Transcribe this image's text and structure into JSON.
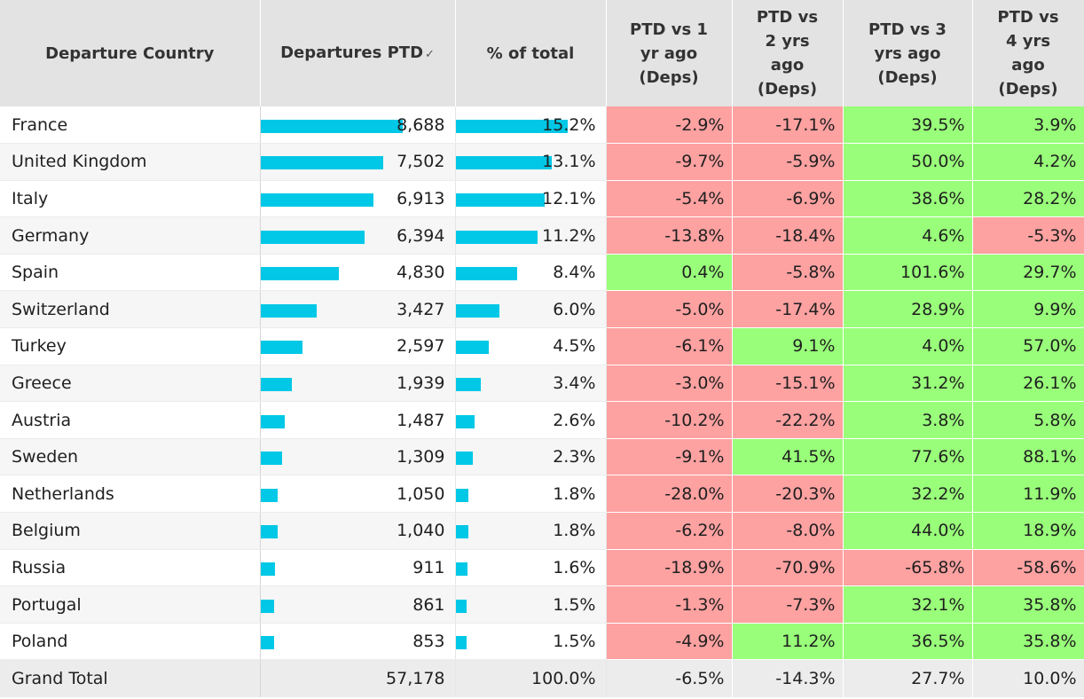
{
  "headers": {
    "country": "Departure Country",
    "departures": "Departures PTD",
    "pct_total": "% of total",
    "vs1": "PTD vs 1 yr ago (Deps)",
    "vs2": "PTD vs 2 yrs ago (Deps)",
    "vs3": "PTD vs 3 yrs ago (Deps)",
    "vs4": "PTD vs 4 yrs ago (Deps)"
  },
  "sort_icon": "sort-descending-icon",
  "sort_glyph": "✓",
  "colors": {
    "bar": "#00c8e6",
    "negative": "#fda1a1",
    "positive": "#99ff7a"
  },
  "max_departures": 8688,
  "max_pct": 15.2,
  "rows": [
    {
      "country": "France",
      "departures": "8,688",
      "dep_value": 8688,
      "pct": "15.2%",
      "pct_value": 15.2,
      "vs1": "-2.9%",
      "vs2": "-17.1%",
      "vs3": "39.5%",
      "vs4": "3.9%"
    },
    {
      "country": "United Kingdom",
      "departures": "7,502",
      "dep_value": 7502,
      "pct": "13.1%",
      "pct_value": 13.1,
      "vs1": "-9.7%",
      "vs2": "-5.9%",
      "vs3": "50.0%",
      "vs4": "4.2%"
    },
    {
      "country": "Italy",
      "departures": "6,913",
      "dep_value": 6913,
      "pct": "12.1%",
      "pct_value": 12.1,
      "vs1": "-5.4%",
      "vs2": "-6.9%",
      "vs3": "38.6%",
      "vs4": "28.2%"
    },
    {
      "country": "Germany",
      "departures": "6,394",
      "dep_value": 6394,
      "pct": "11.2%",
      "pct_value": 11.2,
      "vs1": "-13.8%",
      "vs2": "-18.4%",
      "vs3": "4.6%",
      "vs4": "-5.3%"
    },
    {
      "country": "Spain",
      "departures": "4,830",
      "dep_value": 4830,
      "pct": "8.4%",
      "pct_value": 8.4,
      "vs1": "0.4%",
      "vs2": "-5.8%",
      "vs3": "101.6%",
      "vs4": "29.7%"
    },
    {
      "country": "Switzerland",
      "departures": "3,427",
      "dep_value": 3427,
      "pct": "6.0%",
      "pct_value": 6.0,
      "vs1": "-5.0%",
      "vs2": "-17.4%",
      "vs3": "28.9%",
      "vs4": "9.9%"
    },
    {
      "country": "Turkey",
      "departures": "2,597",
      "dep_value": 2597,
      "pct": "4.5%",
      "pct_value": 4.5,
      "vs1": "-6.1%",
      "vs2": "9.1%",
      "vs3": "4.0%",
      "vs4": "57.0%"
    },
    {
      "country": "Greece",
      "departures": "1,939",
      "dep_value": 1939,
      "pct": "3.4%",
      "pct_value": 3.4,
      "vs1": "-3.0%",
      "vs2": "-15.1%",
      "vs3": "31.2%",
      "vs4": "26.1%"
    },
    {
      "country": "Austria",
      "departures": "1,487",
      "dep_value": 1487,
      "pct": "2.6%",
      "pct_value": 2.6,
      "vs1": "-10.2%",
      "vs2": "-22.2%",
      "vs3": "3.8%",
      "vs4": "5.8%"
    },
    {
      "country": "Sweden",
      "departures": "1,309",
      "dep_value": 1309,
      "pct": "2.3%",
      "pct_value": 2.3,
      "vs1": "-9.1%",
      "vs2": "41.5%",
      "vs3": "77.6%",
      "vs4": "88.1%"
    },
    {
      "country": "Netherlands",
      "departures": "1,050",
      "dep_value": 1050,
      "pct": "1.8%",
      "pct_value": 1.8,
      "vs1": "-28.0%",
      "vs2": "-20.3%",
      "vs3": "32.2%",
      "vs4": "11.9%"
    },
    {
      "country": "Belgium",
      "departures": "1,040",
      "dep_value": 1040,
      "pct": "1.8%",
      "pct_value": 1.8,
      "vs1": "-6.2%",
      "vs2": "-8.0%",
      "vs3": "44.0%",
      "vs4": "18.9%"
    },
    {
      "country": "Russia",
      "departures": "911",
      "dep_value": 911,
      "pct": "1.6%",
      "pct_value": 1.6,
      "vs1": "-18.9%",
      "vs2": "-70.9%",
      "vs3": "-65.8%",
      "vs4": "-58.6%"
    },
    {
      "country": "Portugal",
      "departures": "861",
      "dep_value": 861,
      "pct": "1.5%",
      "pct_value": 1.5,
      "vs1": "-1.3%",
      "vs2": "-7.3%",
      "vs3": "32.1%",
      "vs4": "35.8%"
    },
    {
      "country": "Poland",
      "departures": "853",
      "dep_value": 853,
      "pct": "1.5%",
      "pct_value": 1.5,
      "vs1": "-4.9%",
      "vs2": "11.2%",
      "vs3": "36.5%",
      "vs4": "35.8%"
    }
  ],
  "total": {
    "label": "Grand Total",
    "departures": "57,178",
    "pct": "100.0%",
    "vs1": "-6.5%",
    "vs2": "-14.3%",
    "vs3": "27.7%",
    "vs4": "10.0%"
  }
}
